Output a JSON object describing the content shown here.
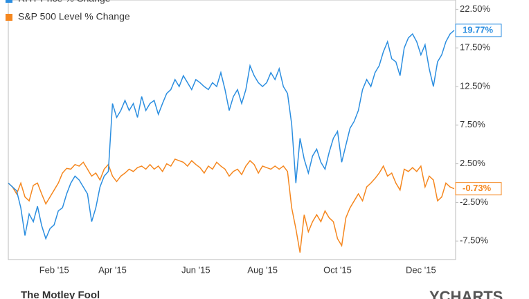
{
  "chart_data": {
    "type": "line",
    "categories": [
      null,
      null,
      null,
      null,
      null,
      null,
      null,
      null,
      null,
      null,
      null,
      "Feb '15",
      null,
      null,
      null,
      null,
      null,
      null,
      null,
      null,
      null,
      null,
      null,
      null,
      null,
      "Apr '15",
      null,
      null,
      null,
      null,
      null,
      null,
      null,
      null,
      null,
      null,
      null,
      null,
      null,
      null,
      null,
      null,
      null,
      null,
      null,
      "Jun '15",
      null,
      null,
      null,
      null,
      null,
      null,
      null,
      null,
      null,
      null,
      null,
      null,
      null,
      null,
      null,
      "Aug '15",
      null,
      null,
      null,
      null,
      null,
      null,
      null,
      null,
      null,
      null,
      null,
      null,
      null,
      null,
      null,
      null,
      null,
      "Oct '15",
      null,
      null,
      null,
      null,
      null,
      null,
      null,
      null,
      null,
      null,
      null,
      null,
      null,
      null,
      null,
      null,
      null,
      null,
      null,
      "Dec '15",
      null,
      null,
      null,
      null,
      null,
      null,
      null,
      null
    ],
    "series": [
      {
        "name": "RHT Price % Change",
        "color": "#2b8ee0",
        "last_label": "19.77%",
        "values": [
          0,
          -0.5,
          -1,
          -3.2,
          -6.8,
          -4,
          -5,
          -3,
          -5.5,
          -7.2,
          -5.9,
          -5.4,
          -3.6,
          -3.2,
          -1.4,
          0,
          0.9,
          0.4,
          -0.5,
          -1.4,
          -5,
          -3.2,
          -0.5,
          0.9,
          1.5,
          10.3,
          8.5,
          9.4,
          10.7,
          9.4,
          10.3,
          8.5,
          11.2,
          9.4,
          10.3,
          10.7,
          8.9,
          10.3,
          11.6,
          12.1,
          13.4,
          12.5,
          13.9,
          13.0,
          12.1,
          13.4,
          13.0,
          12.5,
          12.1,
          13.0,
          12.5,
          14.3,
          12.1,
          9.4,
          11.2,
          12.1,
          10.3,
          12.1,
          15.2,
          13.9,
          13.0,
          12.5,
          13.0,
          14.3,
          13.4,
          14.8,
          12.5,
          11.6,
          7.6,
          0,
          5.8,
          3.1,
          1.3,
          3.5,
          4.4,
          2.7,
          1.8,
          4.0,
          5.8,
          6.7,
          2.7,
          4.9,
          7.1,
          8.0,
          9.4,
          12.1,
          13.4,
          12.5,
          14.3,
          15.2,
          17.0,
          18.3,
          16.1,
          15.7,
          13.9,
          17.5,
          18.8,
          19.3,
          18.3,
          16.6,
          17.9,
          14.8,
          12.5,
          15.7,
          16.6,
          18.3,
          19.3,
          19.77
        ]
      },
      {
        "name": "S&P 500 Level % Change",
        "color": "#f5871f",
        "last_label": "-0.73%",
        "values": [
          0,
          -0.5,
          -1.4,
          0,
          -1.8,
          -2.3,
          -0.3,
          0,
          -1.4,
          -2.7,
          -1.8,
          -0.9,
          0,
          1.3,
          1.9,
          1.8,
          2.4,
          2.2,
          2.7,
          1.8,
          0.9,
          1.3,
          0.4,
          1.8,
          2.4,
          0.9,
          0.2,
          0.9,
          1.3,
          1.8,
          1.5,
          2.0,
          2.2,
          1.8,
          2.4,
          1.8,
          2.2,
          1.5,
          2.5,
          2.2,
          3.1,
          2.9,
          2.7,
          2.2,
          2.9,
          2.4,
          2.0,
          1.3,
          2.2,
          1.8,
          2.7,
          2.2,
          1.8,
          0.9,
          1.5,
          1.8,
          1.1,
          2.2,
          2.9,
          2.4,
          1.3,
          2.2,
          2.0,
          1.8,
          2.2,
          1.8,
          2.2,
          1.5,
          -3.2,
          -5.9,
          -9.0,
          -4.1,
          -6.3,
          -5.0,
          -4.1,
          -5.0,
          -3.6,
          -4.5,
          -5.0,
          -7.2,
          -8.1,
          -4.5,
          -3.2,
          -2.3,
          -1.4,
          -2.3,
          -0.5,
          0,
          0.6,
          1.3,
          2.2,
          0.9,
          1.3,
          0,
          -0.9,
          1.8,
          1.5,
          2.0,
          1.5,
          2.2,
          -0.5,
          0.9,
          0.4,
          -2.3,
          -1.8,
          0,
          -0.5,
          -0.73
        ]
      }
    ],
    "ylim": [
      -9.9,
      23.7
    ],
    "yticks": [
      {
        "value": -7.5,
        "label": "-7.50%"
      },
      {
        "value": -2.5,
        "label": "-2.50%"
      },
      {
        "value": 2.5,
        "label": "2.50%"
      },
      {
        "value": 7.5,
        "label": "7.50%"
      },
      {
        "value": 12.5,
        "label": "12.50%"
      },
      {
        "value": 17.5,
        "label": "17.50%"
      },
      {
        "value": 22.5,
        "label": "22.50%"
      }
    ]
  },
  "footer": {
    "left": "The Motley Fool",
    "right": "YCHARTS"
  }
}
